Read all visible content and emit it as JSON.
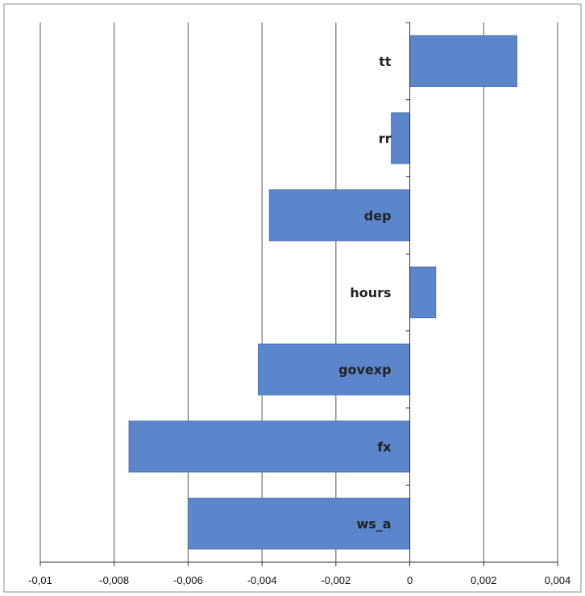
{
  "chart_data": {
    "type": "bar",
    "orientation": "horizontal",
    "categories": [
      "tt",
      "rr",
      "dep",
      "hours",
      "govexp",
      "fx",
      "ws_a"
    ],
    "values": [
      0.0029,
      -0.0005,
      -0.0038,
      0.0007,
      -0.0041,
      -0.0076,
      -0.006
    ],
    "xlim": [
      -0.01,
      0.004
    ],
    "xticks": [
      -0.01,
      -0.008,
      -0.006,
      -0.004,
      -0.002,
      0,
      0.002,
      0.004
    ],
    "xtick_labels": [
      "-0,01",
      "-0,008",
      "-0,006",
      "-0,004",
      "-0,002",
      "0",
      "0,002",
      "0,004"
    ],
    "title": "",
    "xlabel": "",
    "ylabel": "",
    "grid": "vertical",
    "legend": "none",
    "bar_color": "#5b86cc",
    "bar_edge_color": "#4a72b4"
  }
}
